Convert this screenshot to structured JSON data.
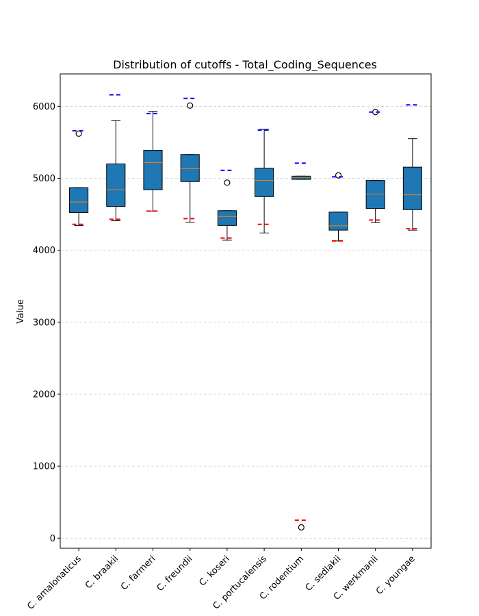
{
  "chart_data": {
    "type": "box",
    "title": "Distribution of cutoffs - Total_Coding_Sequences",
    "xlabel": "",
    "ylabel": "Value",
    "ylim": [
      -140,
      6450
    ],
    "yticks": [
      0,
      1000,
      2000,
      3000,
      4000,
      5000,
      6000
    ],
    "grid": "y-dashed",
    "colors": {
      "box_fill": "#1f77b4",
      "median": "#ff7f0e",
      "upper_cutoff": "#0000ff",
      "lower_cutoff": "#ff0000",
      "grid": "#cccccc"
    },
    "categories": [
      "C. amalonaticus",
      "C. braakii",
      "C. farmeri",
      "C. freundii",
      "C. koseri",
      "C. portucalensis",
      "C. rodentium",
      "C. sedlakii",
      "C. werkmanii",
      "C. youngae"
    ],
    "boxes": [
      {
        "whisker_low": 4345,
        "q1": 4525,
        "median": 4670,
        "q3": 4870,
        "whisker_high": 4870,
        "outliers": [
          5620
        ],
        "upper_cutoff": 5660,
        "lower_cutoff": 4360
      },
      {
        "whisker_low": 4410,
        "q1": 4610,
        "median": 4840,
        "q3": 5200,
        "whisker_high": 5800,
        "outliers": [],
        "upper_cutoff": 6160,
        "lower_cutoff": 4430
      },
      {
        "whisker_low": 4545,
        "q1": 4840,
        "median": 5220,
        "q3": 5390,
        "whisker_high": 5930,
        "outliers": [],
        "upper_cutoff": 5900,
        "lower_cutoff": 4545
      },
      {
        "whisker_low": 4390,
        "q1": 4955,
        "median": 5135,
        "q3": 5330,
        "whisker_high": 5330,
        "outliers": [
          6010
        ],
        "upper_cutoff": 6110,
        "lower_cutoff": 4440
      },
      {
        "whisker_low": 4140,
        "q1": 4345,
        "median": 4470,
        "q3": 4550,
        "whisker_high": 4550,
        "outliers": [
          4940
        ],
        "upper_cutoff": 5110,
        "lower_cutoff": 4170
      },
      {
        "whisker_low": 4240,
        "q1": 4745,
        "median": 4970,
        "q3": 5140,
        "whisker_high": 5680,
        "outliers": [],
        "upper_cutoff": 5670,
        "lower_cutoff": 4360
      },
      {
        "whisker_low": 4985,
        "q1": 4985,
        "median": 5015,
        "q3": 5030,
        "whisker_high": 5030,
        "outliers": [
          150
        ],
        "upper_cutoff": 5210,
        "lower_cutoff": 250
      },
      {
        "whisker_low": 4130,
        "q1": 4280,
        "median": 4340,
        "q3": 4530,
        "whisker_high": 4530,
        "outliers": [
          5040
        ],
        "upper_cutoff": 5020,
        "lower_cutoff": 4130
      },
      {
        "whisker_low": 4385,
        "q1": 4580,
        "median": 4780,
        "q3": 4970,
        "whisker_high": 4970,
        "outliers": [
          5920
        ],
        "upper_cutoff": 5920,
        "lower_cutoff": 4420
      },
      {
        "whisker_low": 4280,
        "q1": 4565,
        "median": 4770,
        "q3": 5155,
        "whisker_high": 5550,
        "outliers": [],
        "upper_cutoff": 6020,
        "lower_cutoff": 4300
      }
    ]
  }
}
